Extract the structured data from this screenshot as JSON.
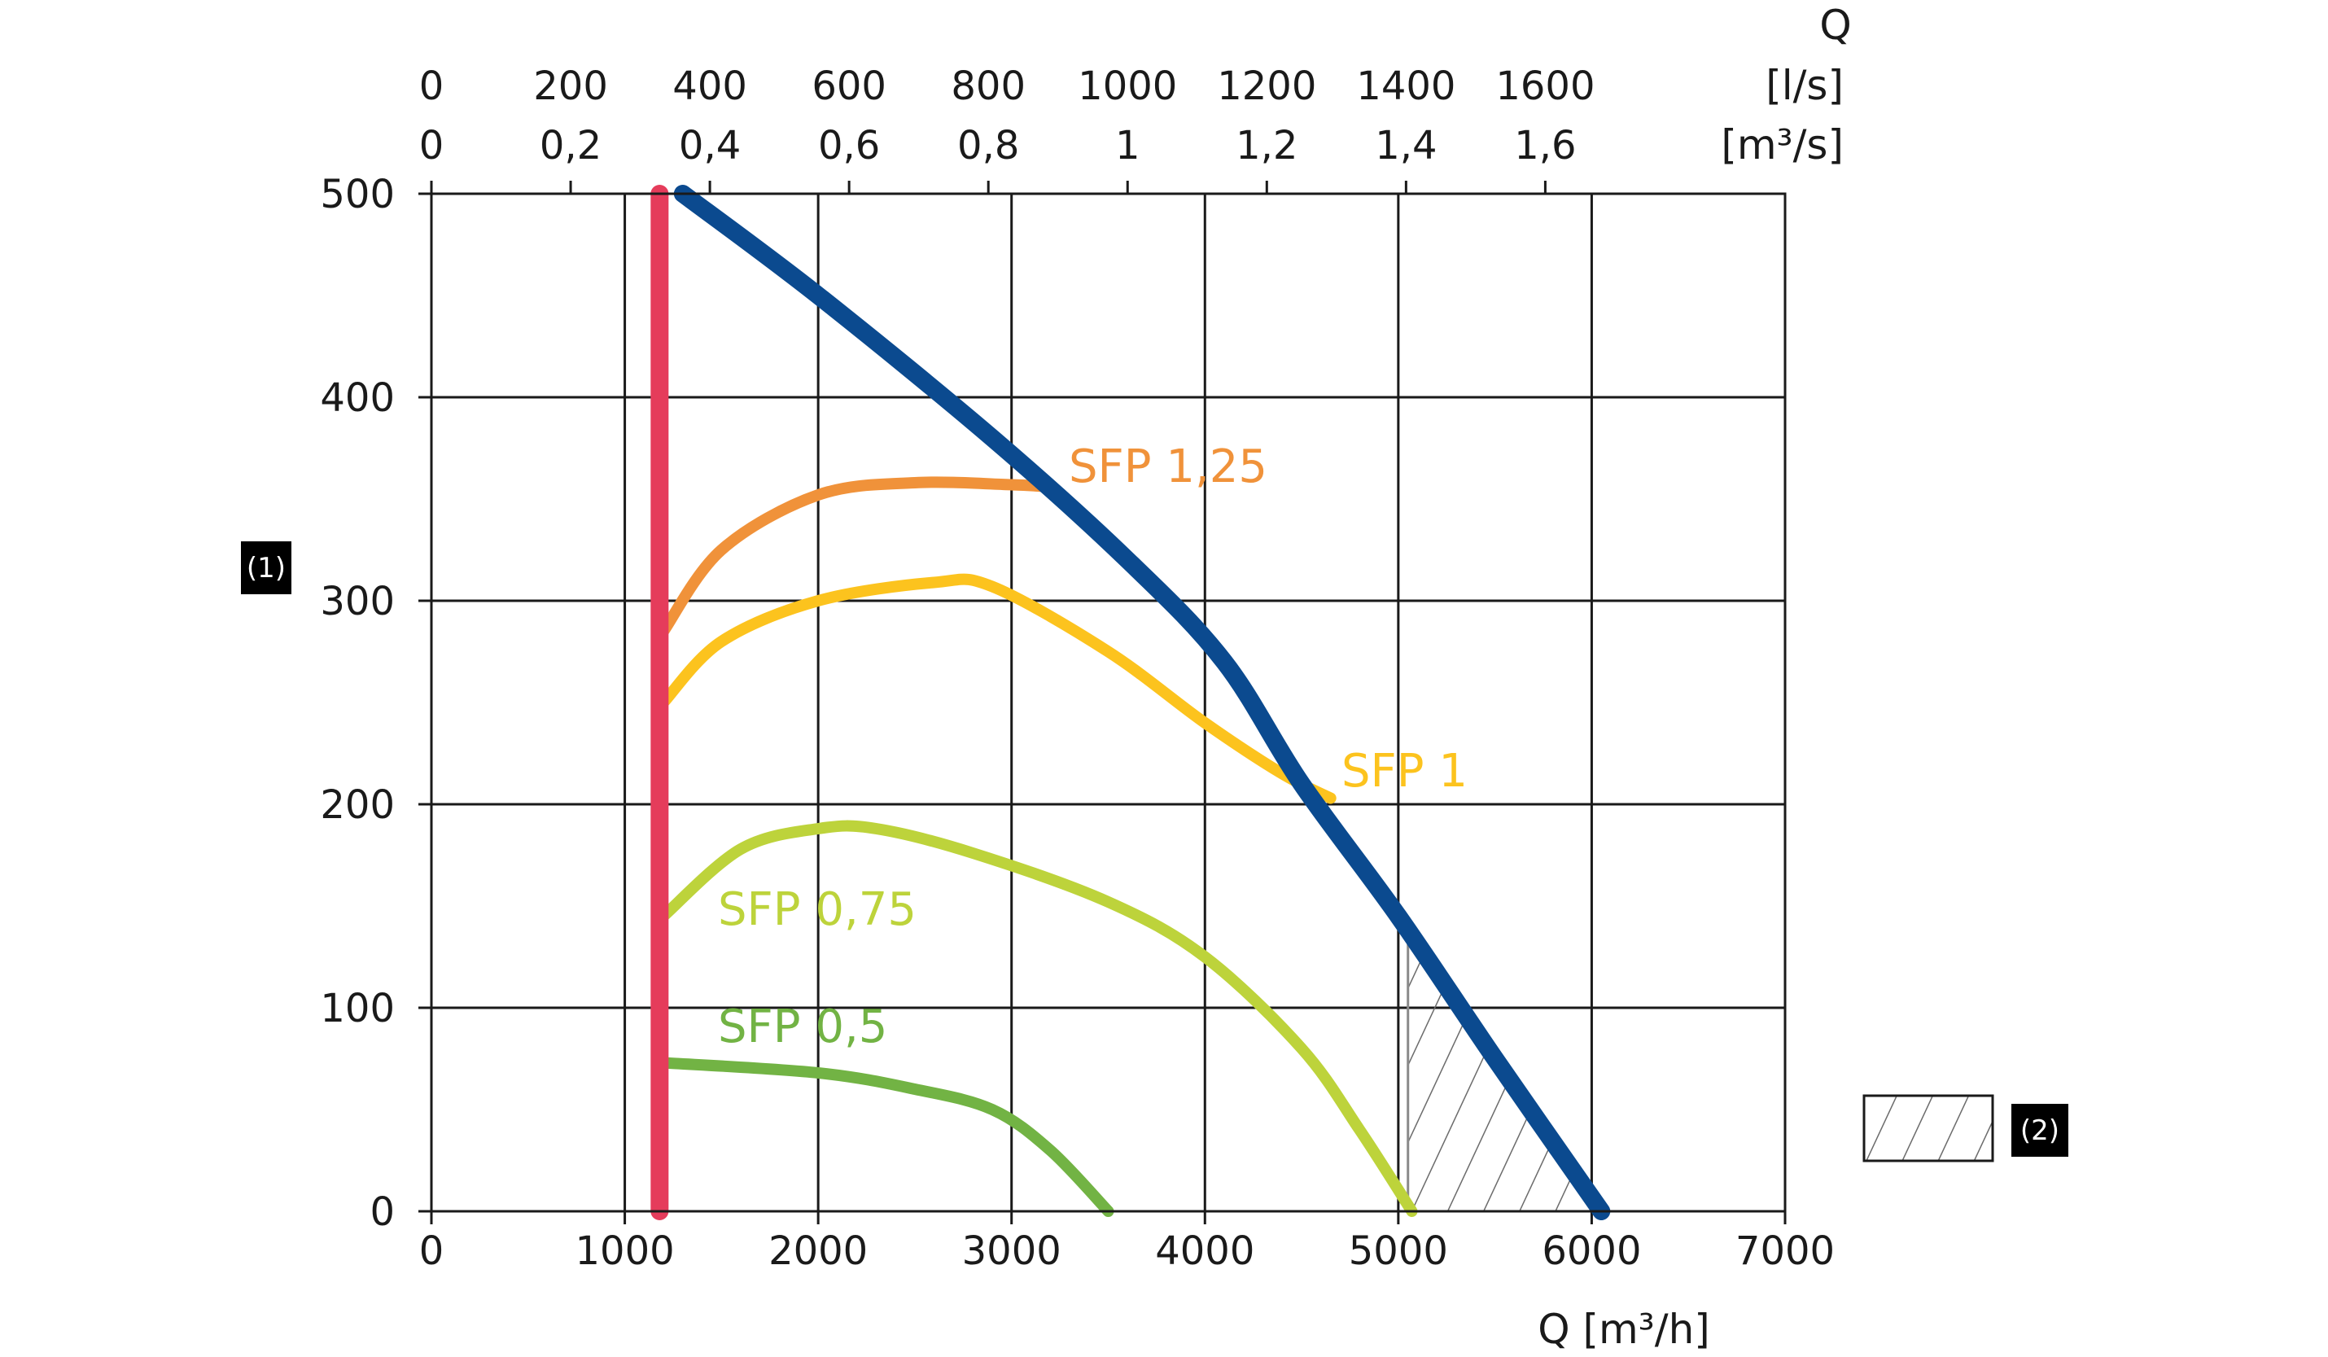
{
  "chart_data": {
    "type": "line",
    "title": "",
    "xlabel": "Q [m³/h]",
    "ylabel": "(1)",
    "xlim": [
      0,
      7000
    ],
    "ylim": [
      0,
      500
    ],
    "grid": true,
    "x_ticks": [
      "0",
      "1000",
      "2000",
      "3000",
      "4000",
      "5000",
      "6000",
      "7000"
    ],
    "y_ticks": [
      "0",
      "100",
      "200",
      "300",
      "400",
      "500"
    ],
    "top_axis_title": "Q",
    "top_axis_ls": {
      "unit": "[l/s]",
      "ticks": [
        "0",
        "200",
        "400",
        "600",
        "800",
        "1000",
        "1200",
        "1400",
        "1600"
      ]
    },
    "top_axis_m3s": {
      "unit": "[m³/s]",
      "ticks": [
        "0",
        "0,2",
        "0,4",
        "0,6",
        "0,8",
        "1",
        "1,2",
        "1,4",
        "1,6"
      ]
    },
    "series": [
      {
        "name": "Max curve",
        "label": "",
        "color": "#0b4a8f",
        "x": [
          1300,
          2000,
          2900,
          3600,
          4100,
          4500,
          5000,
          5500,
          6050
        ],
        "y": [
          500,
          450,
          380,
          320,
          270,
          210,
          145,
          75,
          0
        ]
      },
      {
        "name": "SFP 1,25",
        "label": "SFP 1,25",
        "color": "#f0923a",
        "x": [
          1200,
          1500,
          2000,
          2500,
          3000,
          3200
        ],
        "y": [
          285,
          325,
          352,
          358,
          357,
          356
        ]
      },
      {
        "name": "SFP 1",
        "label": "SFP 1",
        "color": "#fcc31e",
        "x": [
          1200,
          1500,
          2000,
          2600,
          2900,
          3500,
          4000,
          4400,
          4650
        ],
        "y": [
          250,
          280,
          300,
          309,
          307,
          275,
          240,
          215,
          203
        ]
      },
      {
        "name": "SFP 0,75",
        "label": "SFP 0,75",
        "color": "#bdd33b",
        "x": [
          1200,
          1600,
          2000,
          2300,
          2800,
          3500,
          4000,
          4500,
          4800,
          5070
        ],
        "y": [
          145,
          178,
          188,
          188,
          176,
          152,
          125,
          80,
          40,
          0
        ]
      },
      {
        "name": "SFP 0,5",
        "label": "SFP 0,5",
        "color": "#72b344",
        "x": [
          1200,
          2000,
          2500,
          2900,
          3200,
          3500
        ],
        "y": [
          73,
          68,
          60,
          50,
          30,
          0
        ]
      },
      {
        "name": "Min airflow",
        "label": "",
        "color": "#e53c5b",
        "x": [
          1180,
          1180
        ],
        "y": [
          0,
          500
        ]
      }
    ],
    "hatched_region": {
      "x": [
        5050,
        5050,
        6050
      ],
      "y": [
        140,
        0,
        0
      ]
    },
    "legend": [
      {
        "symbol": "hatched-box",
        "label": "(2)"
      }
    ]
  }
}
